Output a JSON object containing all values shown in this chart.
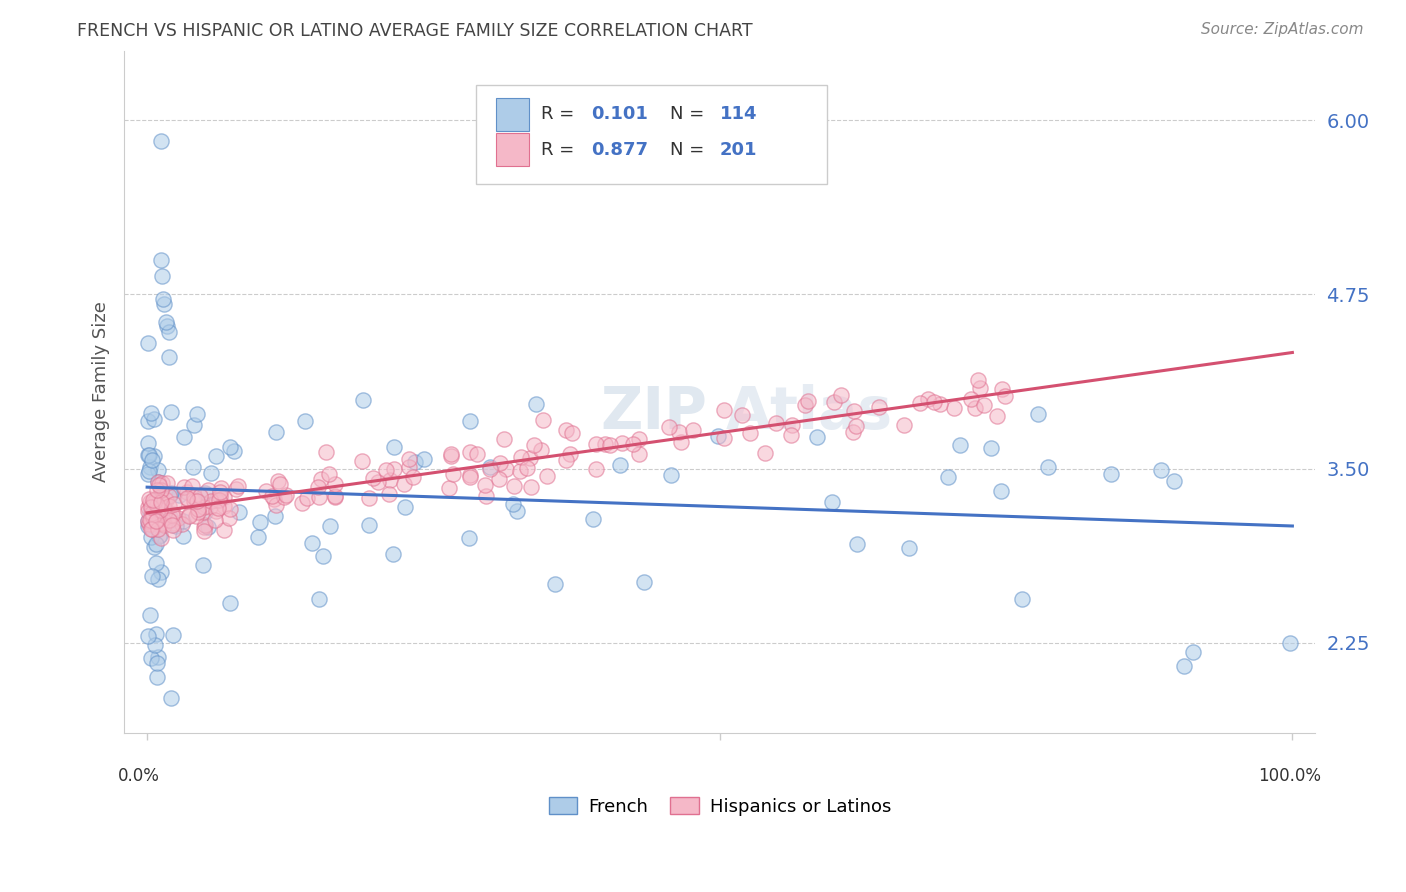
{
  "title": "FRENCH VS HISPANIC OR LATINO AVERAGE FAMILY SIZE CORRELATION CHART",
  "source": "Source: ZipAtlas.com",
  "ylabel": "Average Family Size",
  "yticks": [
    2.25,
    3.5,
    4.75,
    6.0
  ],
  "ylim_min": 1.6,
  "ylim_max": 6.5,
  "xlim_min": -0.02,
  "xlim_max": 1.02,
  "french_R": 0.101,
  "french_N": 114,
  "hispanic_R": 0.877,
  "hispanic_N": 201,
  "french_fill_color": "#aecce8",
  "french_edge_color": "#6090c8",
  "french_line_color": "#4472c4",
  "hispanic_fill_color": "#f5b8c8",
  "hispanic_edge_color": "#e07090",
  "hispanic_line_color": "#d45070",
  "background_color": "#ffffff",
  "tick_label_color": "#4472c4",
  "grid_color": "#cccccc",
  "title_color": "#444444",
  "source_color": "#888888",
  "watermark_color": "#e0e8f0",
  "legend_box_edge": "#cccccc",
  "scatter_size": 120,
  "scatter_alpha": 0.55,
  "scatter_linewidth": 1.0
}
